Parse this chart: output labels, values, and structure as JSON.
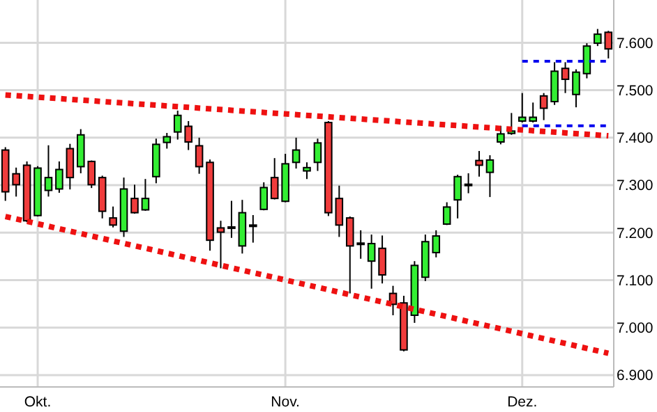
{
  "chart_data": {
    "type": "candlestick",
    "categories": [
      null,
      null,
      null,
      "Okt.",
      null,
      null,
      null,
      null,
      null,
      null,
      null,
      null,
      null,
      null,
      null,
      null,
      null,
      null,
      null,
      null,
      null,
      null,
      null,
      null,
      null,
      null,
      "Nov.",
      null,
      null,
      null,
      null,
      null,
      null,
      null,
      null,
      null,
      null,
      null,
      null,
      null,
      null,
      null,
      null,
      null,
      null,
      null,
      null,
      null,
      "Dez.",
      null,
      null,
      null,
      null,
      null,
      null,
      null,
      null
    ],
    "series": [
      {
        "ohlc": [
          [
            7.374,
            7.38,
            7.267,
            7.286
          ],
          [
            7.324,
            7.337,
            7.276,
            7.301
          ],
          [
            7.342,
            7.35,
            7.222,
            7.225
          ],
          [
            7.236,
            7.34,
            7.234,
            7.336
          ],
          [
            7.289,
            7.384,
            7.276,
            7.316
          ],
          [
            7.292,
            7.35,
            7.284,
            7.333
          ],
          [
            7.377,
            7.387,
            7.291,
            7.316
          ],
          [
            7.339,
            7.418,
            7.325,
            7.406
          ],
          [
            7.35,
            7.352,
            7.294,
            7.301
          ],
          [
            7.316,
            7.32,
            7.23,
            7.245
          ],
          [
            7.231,
            7.255,
            7.211,
            7.216
          ],
          [
            7.203,
            7.316,
            7.191,
            7.292
          ],
          [
            7.272,
            7.301,
            7.24,
            7.242
          ],
          [
            7.248,
            7.313,
            7.246,
            7.272
          ],
          [
            7.318,
            7.398,
            7.304,
            7.386
          ],
          [
            7.39,
            7.41,
            7.377,
            7.402
          ],
          [
            7.412,
            7.457,
            7.396,
            7.447
          ],
          [
            7.424,
            7.435,
            7.374,
            7.391
          ],
          [
            7.383,
            7.4,
            7.324,
            7.339
          ],
          [
            7.348,
            7.354,
            7.162,
            7.184
          ],
          [
            7.21,
            7.225,
            7.125,
            7.201
          ],
          [
            7.212,
            7.267,
            7.189,
            7.21
          ],
          [
            7.172,
            7.269,
            7.156,
            7.242
          ],
          [
            7.214,
            7.237,
            7.179,
            7.216
          ],
          [
            7.249,
            7.306,
            7.247,
            7.295
          ],
          [
            7.316,
            7.357,
            7.27,
            7.272
          ],
          [
            7.266,
            7.366,
            7.264,
            7.345
          ],
          [
            7.348,
            7.4,
            7.335,
            7.374
          ],
          [
            7.33,
            7.348,
            7.313,
            7.337
          ],
          [
            7.348,
            7.398,
            7.33,
            7.389
          ],
          [
            7.432,
            7.435,
            7.235,
            7.242
          ],
          [
            7.272,
            7.299,
            7.191,
            7.216
          ],
          [
            7.231,
            7.234,
            7.072,
            7.172
          ],
          [
            7.178,
            7.205,
            7.145,
            7.176
          ],
          [
            7.14,
            7.196,
            7.082,
            7.177
          ],
          [
            7.167,
            7.194,
            7.093,
            7.111
          ],
          [
            7.072,
            7.088,
            7.026,
            7.049
          ],
          [
            7.052,
            7.067,
            6.95,
            6.953
          ],
          [
            7.026,
            7.14,
            7.01,
            7.131
          ],
          [
            7.106,
            7.196,
            7.098,
            7.181
          ],
          [
            7.158,
            7.205,
            7.148,
            7.193
          ],
          [
            7.218,
            7.264,
            7.216,
            7.254
          ],
          [
            7.269,
            7.322,
            7.23,
            7.318
          ],
          [
            7.3,
            7.325,
            7.283,
            7.302
          ],
          [
            7.352,
            7.372,
            7.318,
            7.342
          ],
          [
            7.327,
            7.363,
            7.275,
            7.353
          ],
          [
            7.391,
            7.425,
            7.386,
            7.408
          ],
          [
            7.409,
            7.452,
            7.406,
            7.414
          ],
          [
            7.435,
            7.494,
            7.432,
            7.443
          ],
          [
            7.435,
            7.474,
            7.432,
            7.443
          ],
          [
            7.488,
            7.494,
            7.437,
            7.462
          ],
          [
            7.476,
            7.559,
            7.469,
            7.54
          ],
          [
            7.546,
            7.559,
            7.494,
            7.523
          ],
          [
            7.491,
            7.544,
            7.464,
            7.538
          ],
          [
            7.535,
            7.599,
            7.525,
            7.593
          ],
          [
            7.599,
            7.629,
            7.593,
            7.618
          ],
          [
            7.622,
            7.625,
            7.567,
            7.587
          ]
        ],
        "colors": [
          "#f03c3c",
          "#f03c3c",
          "#f03c3c",
          "#33ee33",
          "#33ee33",
          "#33ee33",
          "#f03c3c",
          "#33ee33",
          "#f03c3c",
          "#f03c3c",
          "#f03c3c",
          "#33ee33",
          "#f03c3c",
          "#33ee33",
          "#33ee33",
          "#33ee33",
          "#33ee33",
          "#f03c3c",
          "#f03c3c",
          "#f03c3c",
          "#f03c3c",
          "#f03c3c",
          "#33ee33",
          "#f03c3c",
          "#33ee33",
          "#f03c3c",
          "#33ee33",
          "#33ee33",
          "#33ee33",
          "#33ee33",
          "#f03c3c",
          "#f03c3c",
          "#f03c3c",
          "#f03c3c",
          "#33ee33",
          "#f03c3c",
          "#f03c3c",
          "#f03c3c",
          "#33ee33",
          "#33ee33",
          "#33ee33",
          "#33ee33",
          "#33ee33",
          "#33ee33",
          "#f03c3c",
          "#33ee33",
          "#33ee33",
          "#33ee33",
          "#33ee33",
          "#33ee33",
          "#f03c3c",
          "#33ee33",
          "#f03c3c",
          "#33ee33",
          "#33ee33",
          "#33ee33",
          "#f03c3c"
        ]
      },
      {
        "type": "line",
        "color": "#ee1111",
        "line_style": "dotted",
        "values": [
          7.49,
          null,
          null,
          null,
          null,
          null,
          null,
          null,
          null,
          null,
          null,
          null,
          null,
          null,
          null,
          null,
          null,
          null,
          null,
          null,
          null,
          null,
          null,
          null,
          null,
          null,
          null,
          null,
          null,
          null,
          null,
          null,
          null,
          null,
          null,
          null,
          null,
          null,
          null,
          null,
          null,
          null,
          null,
          null,
          null,
          null,
          null,
          null,
          null,
          null,
          null,
          null,
          null,
          null,
          null,
          null,
          7.404
        ]
      },
      {
        "type": "line",
        "color": "#ee1111",
        "line_style": "dotted",
        "values": [
          7.234,
          null,
          null,
          null,
          null,
          null,
          null,
          null,
          null,
          null,
          null,
          null,
          null,
          null,
          null,
          null,
          null,
          null,
          null,
          null,
          null,
          null,
          null,
          null,
          null,
          null,
          null,
          null,
          null,
          null,
          null,
          null,
          null,
          null,
          null,
          null,
          null,
          null,
          null,
          null,
          null,
          null,
          null,
          null,
          null,
          null,
          null,
          null,
          null,
          null,
          null,
          null,
          null,
          null,
          null,
          null,
          6.946
        ]
      },
      {
        "type": "line",
        "color": "#0000ee",
        "line_style": "dotted",
        "values": [
          null,
          null,
          null,
          null,
          null,
          null,
          null,
          null,
          null,
          null,
          null,
          null,
          null,
          null,
          null,
          null,
          null,
          null,
          null,
          null,
          null,
          null,
          null,
          null,
          null,
          null,
          null,
          null,
          null,
          null,
          null,
          null,
          null,
          null,
          null,
          null,
          null,
          null,
          null,
          null,
          null,
          null,
          null,
          null,
          null,
          null,
          null,
          null,
          7.561,
          null,
          null,
          null,
          null,
          null,
          null,
          null,
          7.561
        ]
      },
      {
        "type": "line",
        "color": "#0000ee",
        "line_style": "dotted",
        "values": [
          null,
          null,
          null,
          null,
          null,
          null,
          null,
          null,
          null,
          null,
          null,
          null,
          null,
          null,
          null,
          null,
          null,
          null,
          null,
          null,
          null,
          null,
          null,
          null,
          null,
          null,
          null,
          null,
          null,
          null,
          null,
          null,
          null,
          null,
          null,
          null,
          null,
          null,
          null,
          null,
          null,
          null,
          null,
          null,
          null,
          null,
          null,
          null,
          7.425,
          null,
          null,
          null,
          null,
          null,
          null,
          null,
          7.425
        ]
      }
    ],
    "ylim": [
      6.875,
      7.69
    ],
    "yticks": [
      {
        "value": 6.9,
        "label": "6.900"
      },
      {
        "value": 7.0,
        "label": "7.000"
      },
      {
        "value": 7.1,
        "label": "7.100"
      },
      {
        "value": 7.2,
        "label": "7.200"
      },
      {
        "value": 7.3,
        "label": "7.300"
      },
      {
        "value": 7.4,
        "label": "7.400"
      },
      {
        "value": 7.5,
        "label": "7.500"
      },
      {
        "value": 7.6,
        "label": "7.600"
      }
    ],
    "grid": true
  }
}
